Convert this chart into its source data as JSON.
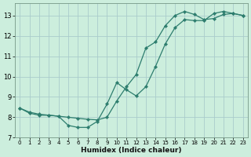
{
  "xlabel": "Humidex (Indice chaleur)",
  "bg_color": "#cceedd",
  "grid_color": "#aacccc",
  "line_color": "#2d7d6e",
  "xlim": [
    -0.5,
    23.5
  ],
  "ylim": [
    7.0,
    13.6
  ],
  "xticks": [
    0,
    1,
    2,
    3,
    4,
    5,
    6,
    7,
    8,
    9,
    10,
    11,
    12,
    13,
    14,
    15,
    16,
    17,
    18,
    19,
    20,
    21,
    22,
    23
  ],
  "yticks": [
    7,
    8,
    9,
    10,
    11,
    12,
    13
  ],
  "curve1_x": [
    0,
    1,
    2,
    3,
    4,
    5,
    6,
    7,
    8,
    9,
    10,
    11,
    12,
    13,
    14,
    15,
    16,
    17,
    18,
    19,
    20,
    21,
    22,
    23
  ],
  "curve1_y": [
    8.45,
    8.2,
    8.1,
    8.1,
    8.05,
    7.6,
    7.5,
    7.5,
    7.8,
    8.65,
    9.7,
    9.35,
    9.05,
    9.5,
    10.5,
    11.6,
    12.4,
    12.8,
    12.75,
    12.75,
    13.1,
    13.2,
    13.1,
    13.0
  ],
  "curve2_x": [
    0,
    1,
    2,
    3,
    4,
    5,
    6,
    7,
    8,
    9,
    10,
    11,
    12,
    13,
    14,
    15,
    16,
    17,
    18,
    19,
    20,
    21,
    22,
    23
  ],
  "curve2_y": [
    8.45,
    8.25,
    8.15,
    8.1,
    8.05,
    8.0,
    7.95,
    7.9,
    7.87,
    8.0,
    8.8,
    9.5,
    10.1,
    11.4,
    11.7,
    12.5,
    13.0,
    13.2,
    13.05,
    12.8,
    12.85,
    13.05,
    13.1,
    13.0
  ]
}
